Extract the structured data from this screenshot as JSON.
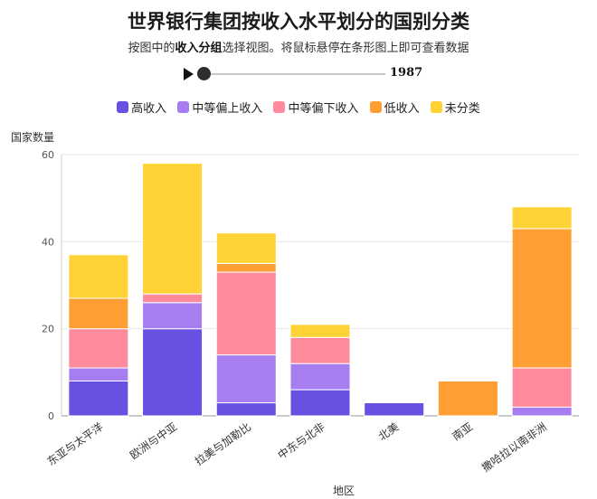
{
  "title": "世界银行集团按收入水平划分的国别分类",
  "subtitle_before": "按图中的",
  "subtitle_bold": "收入分组",
  "subtitle_after": "选择视图。将鼠标悬停在条形图上即可查看数据",
  "player": {
    "year": "1987"
  },
  "colors": {
    "高收入": "#6a4fe3",
    "中等偏上收入": "#a77ef0",
    "中等偏下收入": "#ff8a9c",
    "低收入": "#ff9f33",
    "未分类": "#ffd236"
  },
  "chart_data": {
    "type": "bar",
    "stacked": true,
    "categories": [
      "东亚与太平洋",
      "欧洲与中亚",
      "拉美与加勒比",
      "中东与北非",
      "北美",
      "南亚",
      "撒哈拉以南非洲"
    ],
    "series": [
      {
        "name": "高收入",
        "values": [
          8,
          20,
          3,
          6,
          3,
          0,
          0
        ]
      },
      {
        "name": "中等偏上收入",
        "values": [
          3,
          6,
          11,
          6,
          0,
          0,
          2
        ]
      },
      {
        "name": "中等偏下收入",
        "values": [
          9,
          2,
          19,
          6,
          0,
          0,
          9
        ]
      },
      {
        "name": "低收入",
        "values": [
          7,
          0,
          2,
          0,
          0,
          8,
          32
        ]
      },
      {
        "name": "未分类",
        "values": [
          10,
          30,
          7,
          3,
          0,
          0,
          5
        ]
      }
    ],
    "ylabel": "国家数量",
    "xlabel": "地区",
    "ylim": [
      0,
      60
    ],
    "yticks": [
      0,
      20,
      40,
      60
    ],
    "grid": true,
    "legend": "top-center"
  }
}
